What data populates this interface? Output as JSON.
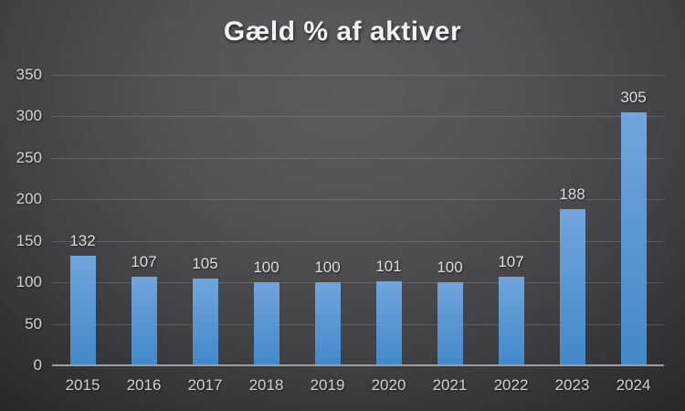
{
  "title": "Gæld % af aktiver",
  "chart_data": {
    "type": "bar",
    "title": "Gæld % af aktiver",
    "categories": [
      "2015",
      "2016",
      "2017",
      "2018",
      "2019",
      "2020",
      "2021",
      "2022",
      "2023",
      "2024"
    ],
    "values": [
      132,
      107,
      105,
      100,
      100,
      101,
      100,
      107,
      188,
      305
    ],
    "data_labels_shown": true,
    "xlabel": "",
    "ylabel": "",
    "ylim": [
      0,
      350
    ],
    "yticks": [
      0,
      50,
      100,
      150,
      200,
      250,
      300,
      350
    ],
    "grid": true,
    "legend": false,
    "colors": {
      "bar_top": "#72a5db",
      "bar_bottom": "#4289cb",
      "background_center": "#5c5c5e",
      "background_edge": "#1f1f21",
      "gridline": "rgba(255,255,255,0.14)",
      "axis_line": "#9e9e9e",
      "tick_label": "#d2d2d2",
      "data_label": "#dcdcdc",
      "title": "#f2f2f2"
    }
  }
}
